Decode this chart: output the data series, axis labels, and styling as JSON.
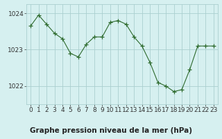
{
  "x": [
    0,
    1,
    2,
    3,
    4,
    5,
    6,
    7,
    8,
    9,
    10,
    11,
    12,
    13,
    14,
    15,
    16,
    17,
    18,
    19,
    20,
    21,
    22,
    23
  ],
  "y": [
    1023.65,
    1023.95,
    1023.7,
    1023.45,
    1023.3,
    1022.9,
    1022.8,
    1023.15,
    1023.35,
    1023.35,
    1023.75,
    1023.8,
    1023.7,
    1023.35,
    1023.1,
    1022.65,
    1022.1,
    1022.0,
    1021.85,
    1021.9,
    1022.45,
    1023.1,
    1023.1,
    1023.1
  ],
  "line_color": "#2d6a2d",
  "marker": "+",
  "marker_size": 4,
  "background_color": "#d6f0f0",
  "grid_color": "#aacfcf",
  "title": "Graphe pression niveau de la mer (hPa)",
  "ylim": [
    1021.5,
    1024.25
  ],
  "xlim": [
    -0.5,
    23.5
  ],
  "yticks": [
    1022,
    1023,
    1024
  ],
  "xtick_labels": [
    "0",
    "1",
    "2",
    "3",
    "4",
    "5",
    "6",
    "7",
    "8",
    "9",
    "10",
    "11",
    "12",
    "13",
    "14",
    "15",
    "16",
    "17",
    "18",
    "19",
    "20",
    "21",
    "22",
    "23"
  ],
  "title_fontsize": 7.5,
  "tick_fontsize": 6.5
}
